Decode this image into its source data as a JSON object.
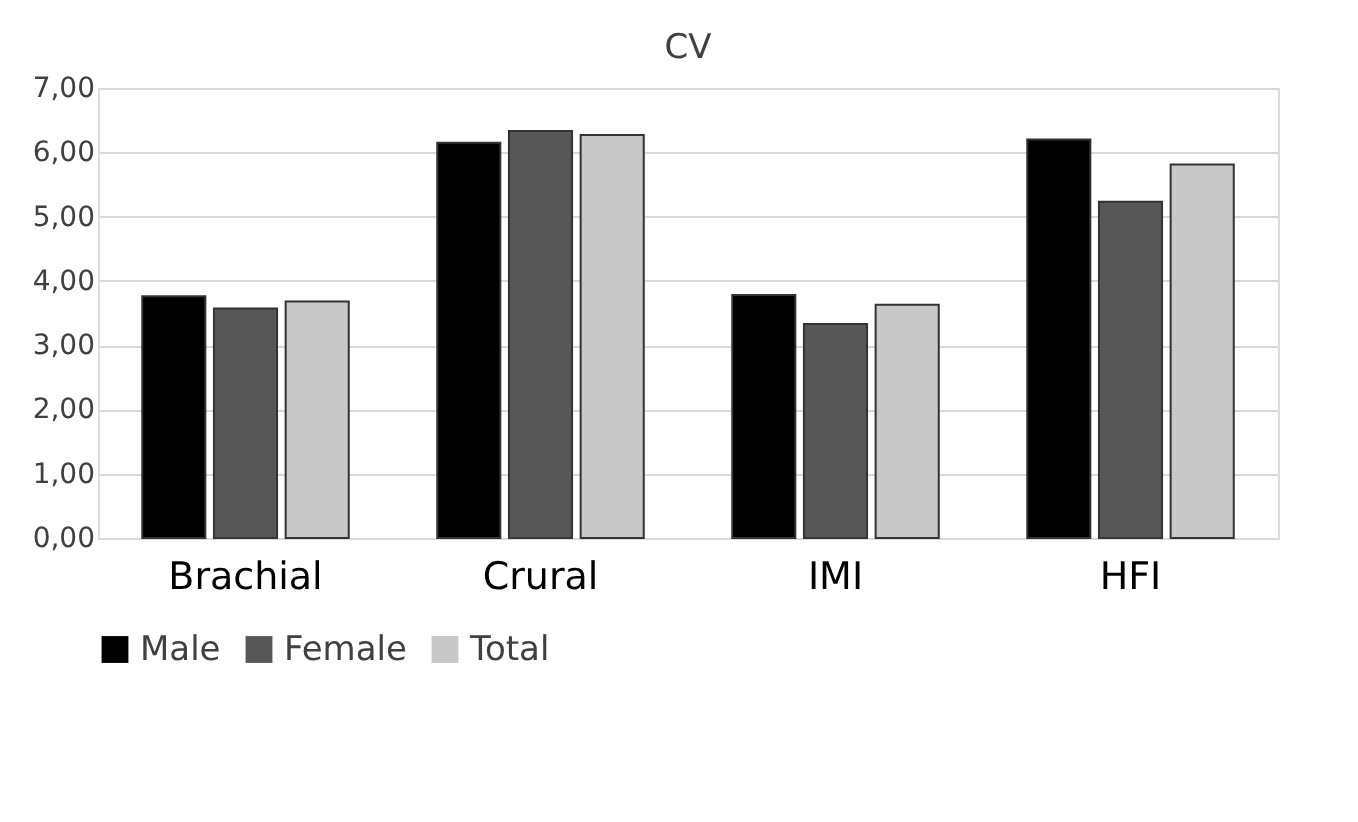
{
  "chart_data": {
    "type": "bar",
    "title": "CV",
    "categories": [
      "Brachial",
      "Crural",
      "IMI",
      "HFI"
    ],
    "series": [
      {
        "name": "Male",
        "color": "#000000",
        "values": [
          3.76,
          6.15,
          3.78,
          6.2
        ]
      },
      {
        "name": "Female",
        "color": "#575757",
        "values": [
          3.57,
          6.33,
          3.33,
          5.23
        ]
      },
      {
        "name": "Total",
        "color": "#c8c8c8",
        "values": [
          3.68,
          6.27,
          3.63,
          5.81
        ]
      }
    ],
    "ylim": [
      0,
      7
    ],
    "yticks": [
      {
        "value": 0,
        "label": "0,00"
      },
      {
        "value": 1,
        "label": "1,00"
      },
      {
        "value": 2,
        "label": "2,00"
      },
      {
        "value": 3,
        "label": "3,00"
      },
      {
        "value": 4,
        "label": "4,00"
      },
      {
        "value": 5,
        "label": "5,00"
      },
      {
        "value": 6,
        "label": "6,00"
      },
      {
        "value": 7,
        "label": "7,00"
      }
    ],
    "grid": "y",
    "legend": "bottom"
  }
}
